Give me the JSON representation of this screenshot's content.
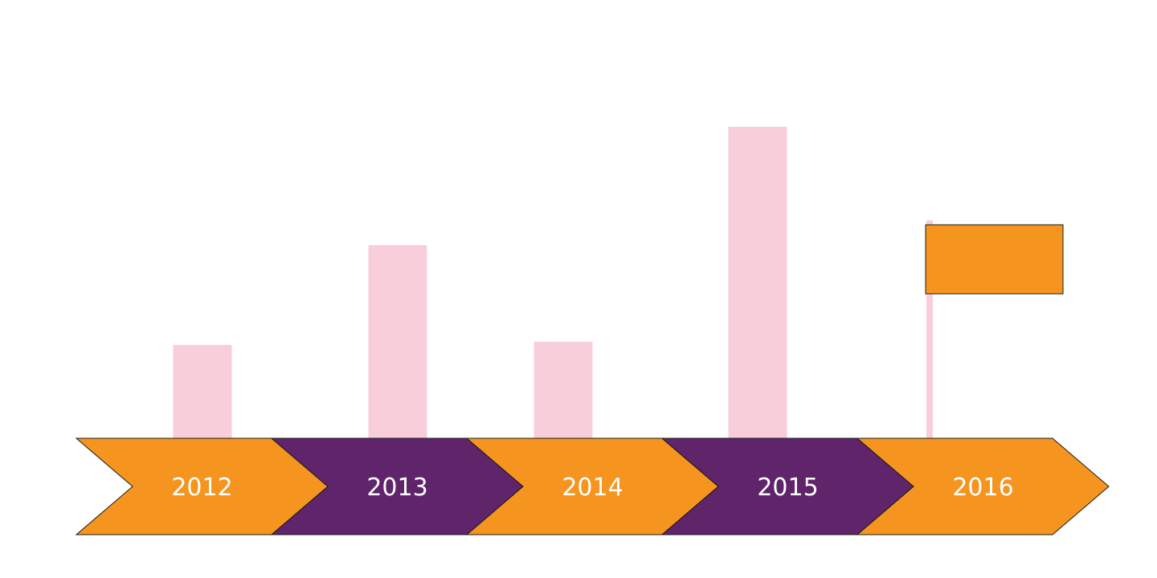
{
  "colors": {
    "background": "#ffffff",
    "bar": "#f8cedb",
    "orange": "#f5951f",
    "purple": "#5f246a",
    "outline": "#1a1a1a",
    "label": "#ffffff"
  },
  "timeline": {
    "segments": [
      {
        "label": "2012",
        "fill": "orange"
      },
      {
        "label": "2013",
        "fill": "purple"
      },
      {
        "label": "2014",
        "fill": "orange"
      },
      {
        "label": "2015",
        "fill": "purple"
      },
      {
        "label": "2016",
        "fill": "orange"
      }
    ]
  },
  "bars": [
    {
      "year": "2012",
      "value": 0.3
    },
    {
      "year": "2013",
      "value": 0.62
    },
    {
      "year": "2014",
      "value": 0.31
    },
    {
      "year": "2015",
      "value": 1.0
    },
    {
      "year": "2016",
      "value": 0.7
    }
  ],
  "flag": {
    "icon": "flag-icon",
    "color": "orange"
  }
}
